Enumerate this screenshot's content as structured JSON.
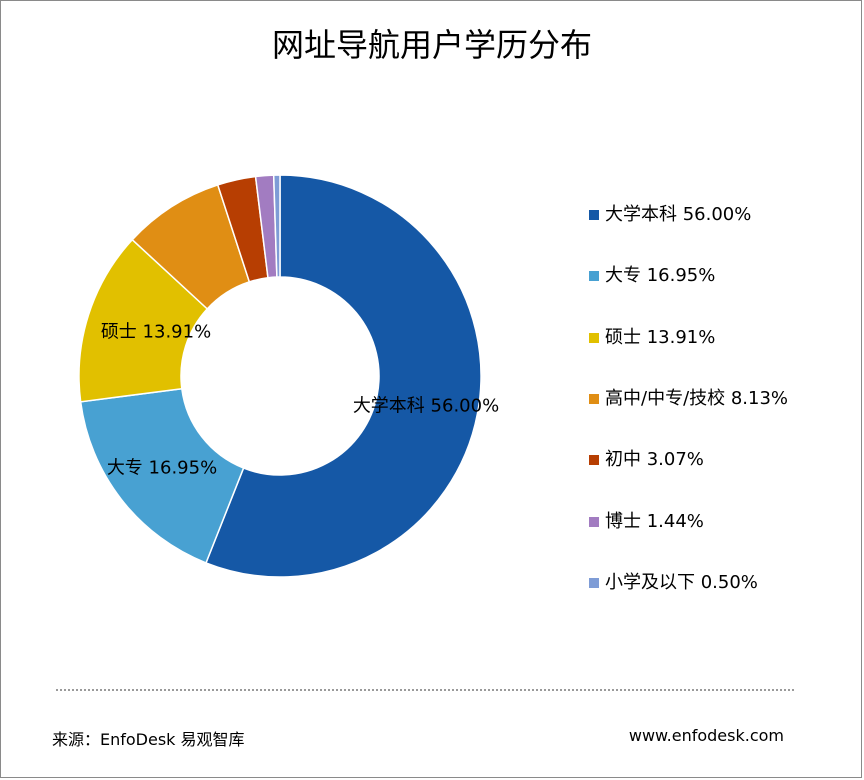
{
  "chart_data": {
    "type": "pie",
    "title": "网址导航用户学历分布",
    "donut": true,
    "slices": [
      {
        "label": "大学本科",
        "value": 56.0,
        "display": "56.00%",
        "color": "#1558A6"
      },
      {
        "label": "大专",
        "value": 16.95,
        "display": "16.95%",
        "color": "#48A1D2"
      },
      {
        "label": "硕士",
        "value": 13.91,
        "display": "13.91%",
        "color": "#E1C000"
      },
      {
        "label": "高中/中专/技校",
        "value": 8.13,
        "display": "8.13%",
        "color": "#E08E14"
      },
      {
        "label": "初中",
        "value": 3.07,
        "display": "3.07%",
        "color": "#B73E02"
      },
      {
        "label": "博士",
        "value": 1.44,
        "display": "1.44%",
        "color": "#A27CC1"
      },
      {
        "label": "小学及以下",
        "value": 0.5,
        "display": "0.50%",
        "color": "#7E9CD6"
      }
    ],
    "data_labels_shown": [
      "大学本科",
      "大专",
      "硕士"
    ],
    "legend_position": "right"
  },
  "footer": {
    "source": "来源：EnfoDesk 易观智库",
    "website": "www.enfodesk.com"
  }
}
